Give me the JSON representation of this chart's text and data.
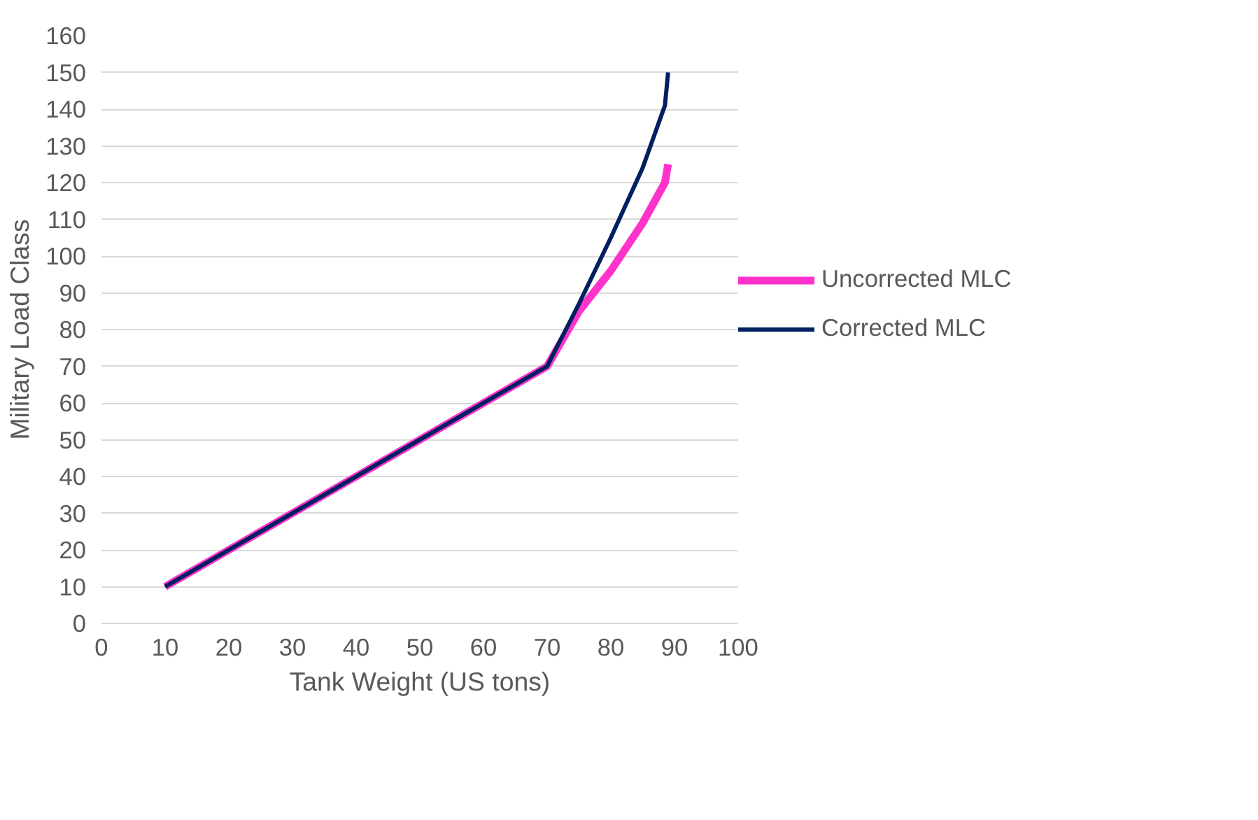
{
  "chart_data": {
    "type": "line",
    "xlabel": "Tank Weight (US tons)",
    "ylabel": "Military Load Class",
    "xlim": [
      0,
      100
    ],
    "xticks": [
      0,
      10,
      20,
      30,
      40,
      50,
      60,
      70,
      80,
      90,
      100
    ],
    "ylim": [
      0,
      160
    ],
    "yticks": [
      0,
      10,
      20,
      30,
      40,
      50,
      60,
      70,
      80,
      90,
      100,
      110,
      120,
      130,
      140,
      150,
      160
    ],
    "grid": "y",
    "legend": "right",
    "marker": "none",
    "line_style": "solid",
    "series": [
      {
        "name": "Uncorrected MLC",
        "color": "#ff33cc",
        "x": [
          10,
          70,
          75,
          80,
          85,
          88.5,
          89
        ],
        "values": [
          10,
          70,
          85,
          96,
          109,
          120,
          125
        ]
      },
      {
        "name": "Corrected MLC",
        "color": "#002060",
        "x": [
          10,
          70,
          75,
          80,
          85,
          88.5,
          89
        ],
        "values": [
          10,
          70,
          87,
          105,
          124,
          141,
          150
        ]
      }
    ]
  }
}
